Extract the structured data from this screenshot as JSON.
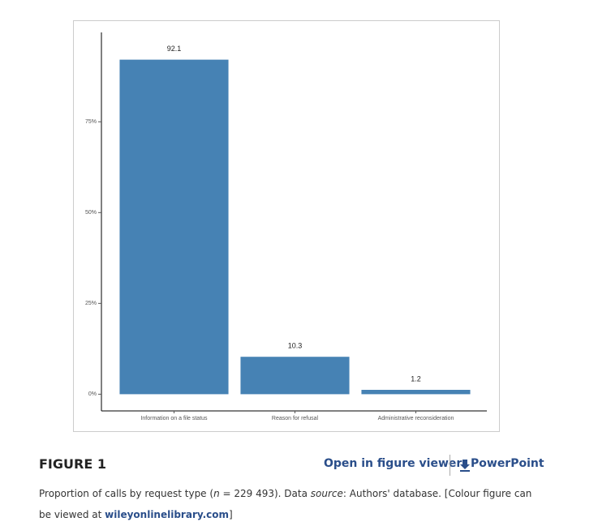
{
  "chart_data": {
    "type": "bar",
    "categories": [
      "Information on a file status",
      "Reason for refusal",
      "Administrative reconsideration"
    ],
    "values": [
      92.1,
      10.3,
      1.2
    ],
    "color": "#4682b4",
    "ylim": [
      -4.6,
      99.6
    ],
    "yticks": [
      {
        "value": 0,
        "label": "0%"
      },
      {
        "value": 25,
        "label": "25%"
      },
      {
        "value": 50,
        "label": "50%"
      },
      {
        "value": 75,
        "label": "75%"
      }
    ],
    "grid": false
  },
  "figure_label": "FIGURE 1",
  "links": [
    "Open in figure viewer",
    "PowerPoint"
  ],
  "caption": [
    "Proportion of calls by request type (",
    "n",
    " = 229 493). Data ",
    "source",
    ": Authors' database. [Colour figure can be viewed at ",
    "wileyonlinelibrary.com",
    "]"
  ]
}
